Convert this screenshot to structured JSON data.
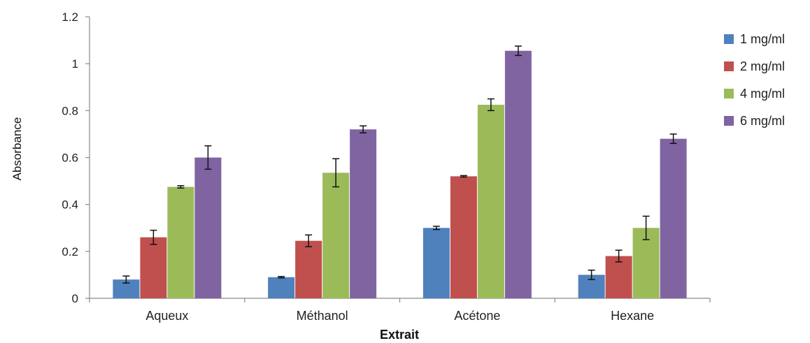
{
  "chart_data": {
    "type": "bar",
    "xlabel": "Extrait",
    "ylabel": "Absorbance",
    "ylim": [
      0,
      1.2
    ],
    "yticks": [
      0,
      0.2,
      0.4,
      0.6,
      0.8,
      1,
      1.2
    ],
    "categories": [
      "Aqueux",
      "Méthanol",
      "Acétone",
      "Hexane"
    ],
    "legend_position": "right",
    "grid": false,
    "error_bars": true,
    "series": [
      {
        "name": "1 mg/ml",
        "color": "#4f81bd",
        "values": [
          0.08,
          0.09,
          0.3,
          0.1
        ],
        "errors": [
          0.015,
          0.003,
          0.007,
          0.02
        ]
      },
      {
        "name": "2 mg/ml",
        "color": "#c0504d",
        "values": [
          0.26,
          0.245,
          0.52,
          0.18
        ],
        "errors": [
          0.03,
          0.025,
          0.003,
          0.025
        ]
      },
      {
        "name": "4 mg/ml",
        "color": "#9bbb59",
        "values": [
          0.475,
          0.535,
          0.825,
          0.3
        ],
        "errors": [
          0.005,
          0.06,
          0.025,
          0.05
        ]
      },
      {
        "name": "6 mg/ml",
        "color": "#8064a2",
        "values": [
          0.6,
          0.72,
          1.055,
          0.68
        ],
        "errors": [
          0.05,
          0.015,
          0.02,
          0.02
        ]
      }
    ]
  }
}
